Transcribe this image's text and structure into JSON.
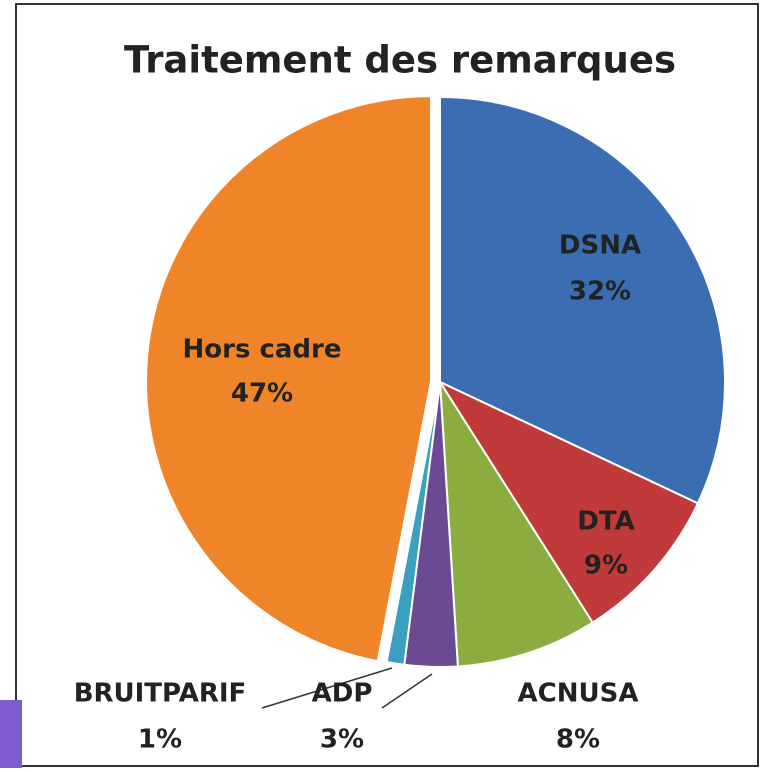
{
  "chart_data": {
    "type": "pie",
    "title": "Traitement des remarques",
    "categories": [
      "DSNA",
      "DTA",
      "ACNUSA",
      "ADP",
      "BRUITPARIF",
      "Hors cadre"
    ],
    "values": [
      32,
      9,
      8,
      3,
      1,
      47
    ],
    "value_labels": [
      "32%",
      "9%",
      "8%",
      "3%",
      "1%",
      "47%"
    ],
    "colors": [
      "#3b6db3",
      "#c13a3a",
      "#8bad40",
      "#6b4a94",
      "#3aa0bf",
      "#ef8528"
    ]
  }
}
